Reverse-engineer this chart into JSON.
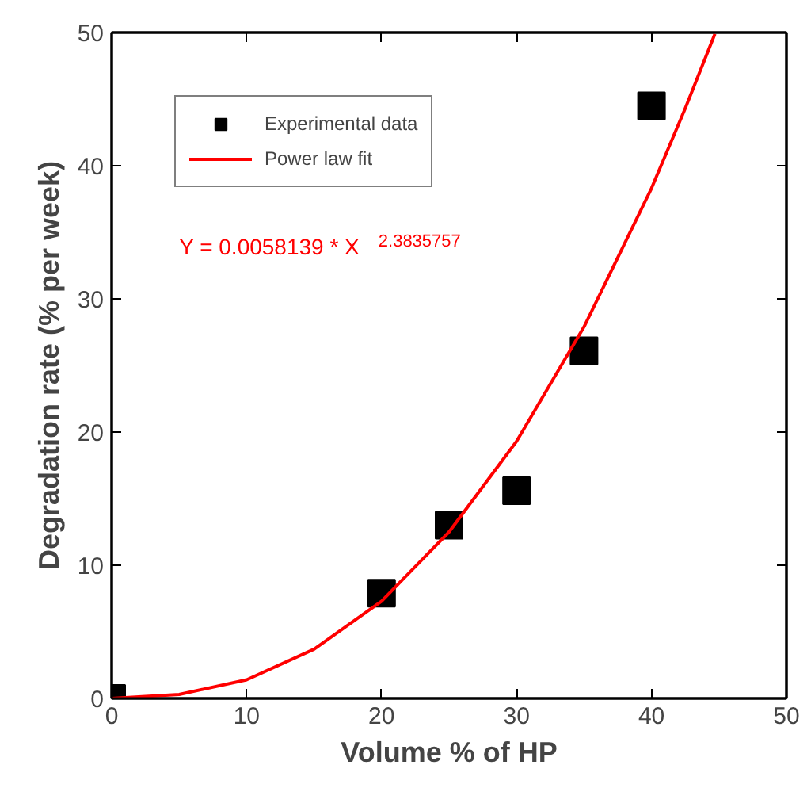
{
  "chart_data": {
    "type": "scatter",
    "xlabel": "Volume % of HP",
    "ylabel": "Degradation rate (% per week)",
    "xlim": [
      0,
      50
    ],
    "ylim": [
      0,
      50
    ],
    "xticks": [
      0,
      10,
      20,
      30,
      40,
      50
    ],
    "yticks": [
      0,
      10,
      20,
      30,
      40,
      50
    ],
    "grid": false,
    "legend": "top left",
    "annotations": [
      "Y = 0.0058139 * X$^{2.3835757}$"
    ],
    "series": [
      {
        "name": "Experimental data",
        "marker": "square",
        "color": "#000000",
        "x": [
          0,
          20,
          25,
          30,
          35,
          40
        ],
        "values": [
          0,
          7.9,
          13.0,
          15.6,
          26.1,
          44.5
        ]
      },
      {
        "name": "Power law fit",
        "type": "line",
        "marker": "none",
        "line_style": "solid",
        "color": "#ff0000",
        "x": [
          0,
          5,
          10,
          15,
          20,
          25,
          30,
          35,
          40,
          42.5,
          44.7
        ],
        "values": [
          0,
          0.3,
          1.4,
          3.7,
          7.3,
          12.5,
          19.3,
          27.9,
          38.3,
          44.3,
          49.9
        ]
      }
    ]
  }
}
